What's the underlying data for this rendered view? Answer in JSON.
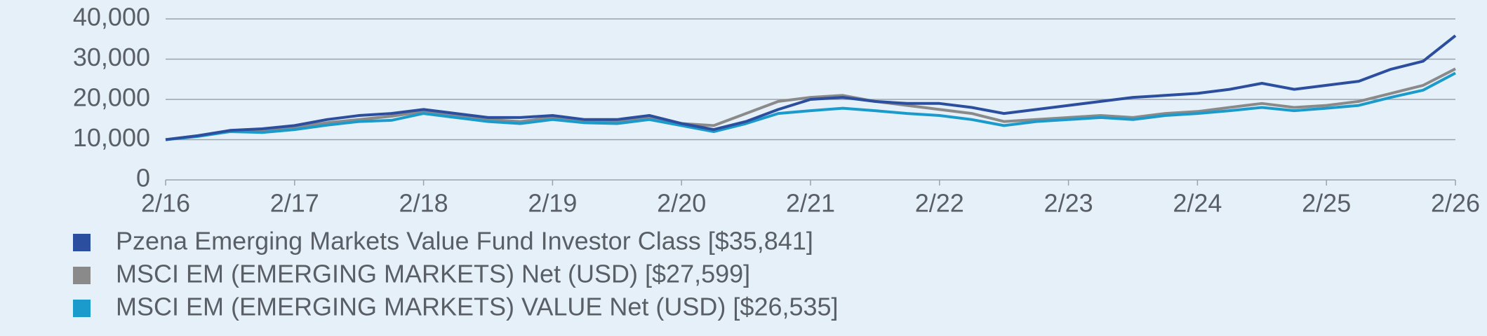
{
  "chart_data": {
    "type": "line",
    "x": [
      "2016-02",
      "2016-05",
      "2016-08",
      "2016-11",
      "2017-02",
      "2017-05",
      "2017-08",
      "2017-11",
      "2018-02",
      "2018-05",
      "2018-08",
      "2018-11",
      "2019-02",
      "2019-05",
      "2019-08",
      "2019-11",
      "2020-02",
      "2020-05",
      "2020-08",
      "2020-11",
      "2021-02",
      "2021-05",
      "2021-08",
      "2021-11",
      "2022-02",
      "2022-05",
      "2022-08",
      "2022-11",
      "2023-02",
      "2023-05",
      "2023-08",
      "2023-11",
      "2024-02",
      "2024-05",
      "2024-08",
      "2024-11",
      "2025-02",
      "2025-05",
      "2025-08",
      "2025-11",
      "2026-02"
    ],
    "series": [
      {
        "name": "Pzena Emerging Markets Value Fund Investor Class [$35,841]",
        "color": "#2b4f9e",
        "values": [
          10000,
          11000,
          12300,
          12700,
          13500,
          15000,
          16000,
          16500,
          17500,
          16500,
          15500,
          15500,
          16000,
          15000,
          15000,
          16000,
          14000,
          12500,
          14500,
          17500,
          20000,
          20500,
          19500,
          19000,
          19000,
          18000,
          16500,
          17500,
          18500,
          19500,
          20500,
          21000,
          21500,
          22500,
          24000,
          22500,
          23500,
          24500,
          27500,
          29500,
          35841
        ]
      },
      {
        "name": "MSCI EM (EMERGING MARKETS) Net (USD) [$27,599]",
        "color": "#8a8a8a",
        "values": [
          10000,
          11000,
          12200,
          12000,
          13000,
          14200,
          15000,
          15800,
          17000,
          16000,
          15000,
          14500,
          15500,
          14500,
          14500,
          15500,
          14000,
          13500,
          16500,
          19500,
          20500,
          21000,
          19500,
          18500,
          17500,
          16500,
          14500,
          15000,
          15500,
          16000,
          15500,
          16500,
          17000,
          18000,
          19000,
          18000,
          18500,
          19500,
          21500,
          23500,
          27599
        ]
      },
      {
        "name": "MSCI EM (EMERGING MARKETS) VALUE Net (USD) [$26,535]",
        "color": "#1a9bcc",
        "values": [
          10000,
          10800,
          12000,
          11800,
          12500,
          13600,
          14500,
          14800,
          16500,
          15500,
          14500,
          14000,
          15000,
          14200,
          14000,
          15000,
          13500,
          12000,
          14000,
          16500,
          17200,
          17800,
          17200,
          16500,
          16000,
          15000,
          13500,
          14500,
          15000,
          15500,
          15000,
          16000,
          16500,
          17200,
          18000,
          17200,
          17800,
          18500,
          20500,
          22300,
          26535
        ]
      }
    ],
    "xlim": [
      "2016-02",
      "2026-02"
    ],
    "xticks": [
      {
        "value": "2016-02",
        "label": "2/16"
      },
      {
        "value": "2017-02",
        "label": "2/17"
      },
      {
        "value": "2018-02",
        "label": "2/18"
      },
      {
        "value": "2019-02",
        "label": "2/19"
      },
      {
        "value": "2020-02",
        "label": "2/20"
      },
      {
        "value": "2021-02",
        "label": "2/21"
      },
      {
        "value": "2022-02",
        "label": "2/22"
      },
      {
        "value": "2023-02",
        "label": "2/23"
      },
      {
        "value": "2024-02",
        "label": "2/24"
      },
      {
        "value": "2025-02",
        "label": "2/25"
      },
      {
        "value": "2026-02",
        "label": "2/26"
      }
    ],
    "ylim": [
      0,
      40000
    ],
    "yticks": [
      0,
      {
        "value": 10000,
        "label": "10,000"
      },
      {
        "value": 20000,
        "label": "20,000"
      },
      {
        "value": 30000,
        "label": "30,000"
      },
      {
        "value": 40000,
        "label": "40,000"
      }
    ],
    "grid": true
  }
}
